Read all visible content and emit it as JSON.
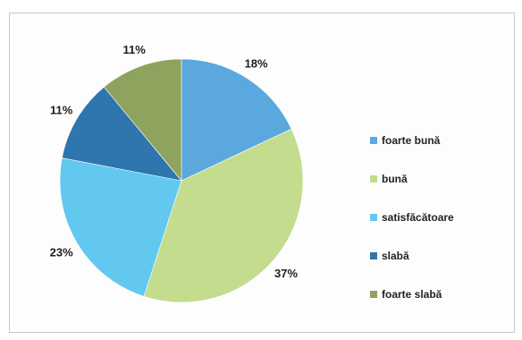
{
  "chart_data": {
    "type": "pie",
    "title": "",
    "start_angle_deg": 0,
    "direction": "clockwise",
    "slices": [
      {
        "name": "foarte bună",
        "value": 18,
        "label": "18%",
        "color": "#5aa8dd"
      },
      {
        "name": "bună",
        "value": 37,
        "label": "37%",
        "color": "#c3dc8d"
      },
      {
        "name": "satisfăcătoare",
        "value": 23,
        "label": "23%",
        "color": "#62c8ef"
      },
      {
        "name": "slabă",
        "value": 11,
        "label": "11%",
        "color": "#2f75ae"
      },
      {
        "name": "foarte slabă",
        "value": 11,
        "label": "11%",
        "color": "#8ea35e"
      }
    ],
    "legend": {
      "placement": "right",
      "items": [
        "foarte bună",
        "bună",
        "satisfăcătoare",
        "slabă",
        "foarte slabă"
      ]
    }
  }
}
